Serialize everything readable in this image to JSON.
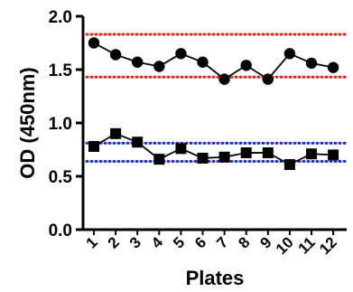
{
  "chart_data": {
    "type": "line",
    "title": "",
    "xlabel": "Plates",
    "ylabel": "OD (450nm)",
    "ylim": [
      0,
      2
    ],
    "yticks": [
      "0.0",
      "0.5",
      "1.0",
      "1.5",
      "2.0"
    ],
    "categories": [
      "1",
      "2",
      "3",
      "4",
      "5",
      "6",
      "7",
      "8",
      "9",
      "10",
      "11",
      "12"
    ],
    "grid": false,
    "series": [
      {
        "marker": "circle",
        "color": "#000000",
        "values": [
          1.75,
          1.64,
          1.57,
          1.53,
          1.65,
          1.57,
          1.41,
          1.54,
          1.41,
          1.65,
          1.56,
          1.52
        ]
      },
      {
        "marker": "square",
        "color": "#000000",
        "values": [
          0.78,
          0.9,
          0.82,
          0.66,
          0.76,
          0.67,
          0.68,
          0.72,
          0.72,
          0.61,
          0.71,
          0.7
        ]
      }
    ],
    "reference_lines": [
      {
        "value": 1.83,
        "color": "#e8231f",
        "style": "dotted"
      },
      {
        "value": 1.43,
        "color": "#e8231f",
        "style": "dotted"
      },
      {
        "value": 0.81,
        "color": "#1f2fd6",
        "style": "dotted"
      },
      {
        "value": 0.64,
        "color": "#1f2fd6",
        "style": "dotted"
      }
    ]
  }
}
